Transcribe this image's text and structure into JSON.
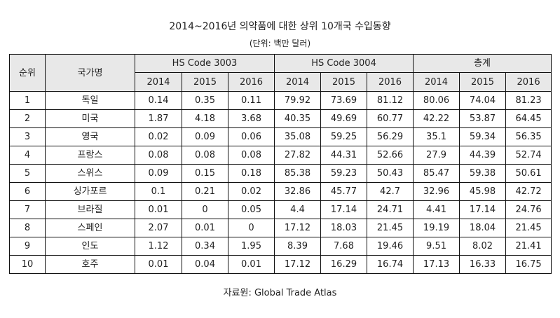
{
  "title": "2014~2016년 의약품에 대한 상위 10개국 수입동향",
  "unit": "(단위: 백만 달러)",
  "headers": {
    "rank": "순위",
    "country": "국가명",
    "groups": [
      "HS Code 3003",
      "HS Code 3004",
      "총계"
    ],
    "years": [
      "2014",
      "2015",
      "2016"
    ]
  },
  "rows": [
    {
      "rank": "1",
      "country": "독일",
      "values": [
        "0.14",
        "0.35",
        "0.11",
        "79.92",
        "73.69",
        "81.12",
        "80.06",
        "74.04",
        "81.23"
      ]
    },
    {
      "rank": "2",
      "country": "미국",
      "values": [
        "1.87",
        "4.18",
        "3.68",
        "40.35",
        "49.69",
        "60.77",
        "42.22",
        "53.87",
        "64.45"
      ]
    },
    {
      "rank": "3",
      "country": "영국",
      "values": [
        "0.02",
        "0.09",
        "0.06",
        "35.08",
        "59.25",
        "56.29",
        "35.1",
        "59.34",
        "56.35"
      ]
    },
    {
      "rank": "4",
      "country": "프랑스",
      "values": [
        "0.08",
        "0.08",
        "0.08",
        "27.82",
        "44.31",
        "52.66",
        "27.9",
        "44.39",
        "52.74"
      ]
    },
    {
      "rank": "5",
      "country": "스위스",
      "values": [
        "0.09",
        "0.15",
        "0.18",
        "85.38",
        "59.23",
        "50.43",
        "85.47",
        "59.38",
        "50.61"
      ]
    },
    {
      "rank": "6",
      "country": "싱가포르",
      "values": [
        "0.1",
        "0.21",
        "0.02",
        "32.86",
        "45.77",
        "42.7",
        "32.96",
        "45.98",
        "42.72"
      ]
    },
    {
      "rank": "7",
      "country": "브라질",
      "values": [
        "0.01",
        "0",
        "0.05",
        "4.4",
        "17.14",
        "24.71",
        "4.41",
        "17.14",
        "24.76"
      ]
    },
    {
      "rank": "8",
      "country": "스페인",
      "values": [
        "2.07",
        "0.01",
        "0",
        "17.12",
        "18.03",
        "21.45",
        "19.19",
        "18.04",
        "21.45"
      ]
    },
    {
      "rank": "9",
      "country": "인도",
      "values": [
        "1.12",
        "0.34",
        "1.95",
        "8.39",
        "7.68",
        "19.46",
        "9.51",
        "8.02",
        "21.41"
      ]
    },
    {
      "rank": "10",
      "country": "호주",
      "values": [
        "0.01",
        "0.04",
        "0.01",
        "17.12",
        "16.29",
        "16.74",
        "17.13",
        "16.33",
        "16.75"
      ]
    }
  ],
  "source": "자료원: Global Trade Atlas"
}
